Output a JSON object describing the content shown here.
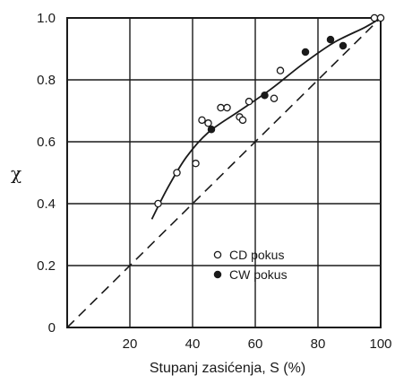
{
  "chart_data": {
    "type": "scatter",
    "xlabel": "Stupanj zasićenja, S (%)",
    "ylabel": "χ",
    "xlim": [
      0,
      100
    ],
    "ylim": [
      0,
      1.0
    ],
    "x_ticks": [
      "20",
      "40",
      "60",
      "80",
      "100"
    ],
    "y_ticks": [
      "0",
      "0.2",
      "0.4",
      "0.6",
      "0.8",
      "1.0"
    ],
    "origin_label": "0",
    "grid": true,
    "legend_position": "bottom-right",
    "series": [
      {
        "name": "CD pokus",
        "marker": "open-circle",
        "points": [
          {
            "x": 29,
            "y": 0.4
          },
          {
            "x": 35,
            "y": 0.5
          },
          {
            "x": 41,
            "y": 0.53
          },
          {
            "x": 43,
            "y": 0.67
          },
          {
            "x": 45,
            "y": 0.66
          },
          {
            "x": 49,
            "y": 0.71
          },
          {
            "x": 51,
            "y": 0.71
          },
          {
            "x": 55,
            "y": 0.68
          },
          {
            "x": 56,
            "y": 0.67
          },
          {
            "x": 58,
            "y": 0.73
          },
          {
            "x": 66,
            "y": 0.74
          },
          {
            "x": 68,
            "y": 0.83
          },
          {
            "x": 98,
            "y": 1.0
          },
          {
            "x": 100,
            "y": 1.0
          }
        ]
      },
      {
        "name": "CW pokus",
        "marker": "filled-circle",
        "points": [
          {
            "x": 46,
            "y": 0.64
          },
          {
            "x": 63,
            "y": 0.75
          },
          {
            "x": 76,
            "y": 0.89
          },
          {
            "x": 84,
            "y": 0.93
          },
          {
            "x": 88,
            "y": 0.91
          }
        ]
      }
    ],
    "fitted_curve": [
      {
        "x": 27,
        "y": 0.35
      },
      {
        "x": 32,
        "y": 0.45
      },
      {
        "x": 38,
        "y": 0.55
      },
      {
        "x": 45,
        "y": 0.63
      },
      {
        "x": 55,
        "y": 0.7
      },
      {
        "x": 65,
        "y": 0.77
      },
      {
        "x": 75,
        "y": 0.85
      },
      {
        "x": 85,
        "y": 0.92
      },
      {
        "x": 95,
        "y": 0.97
      },
      {
        "x": 100,
        "y": 1.0
      }
    ],
    "reference_line": [
      {
        "x": 0,
        "y": 0.0
      },
      {
        "x": 100,
        "y": 1.0
      }
    ]
  }
}
